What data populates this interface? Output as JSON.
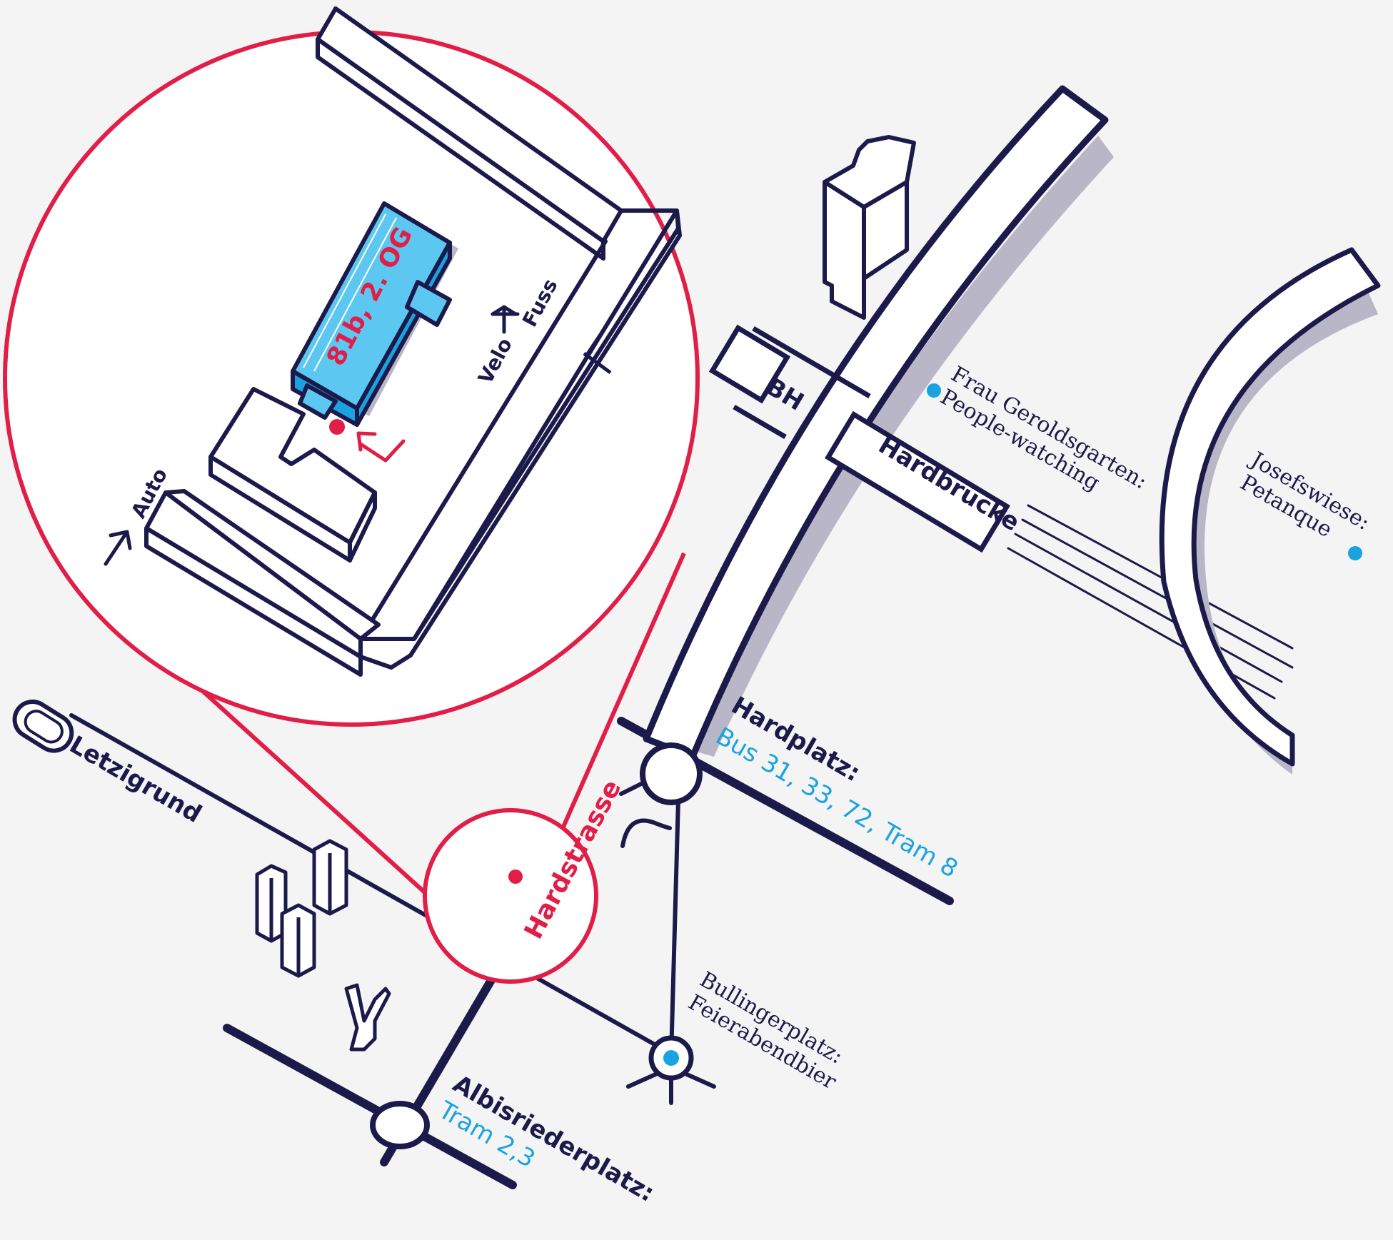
{
  "colors": {
    "background": "#f4f4f4",
    "ink": "#1c1a4a",
    "accent_red": "#e01e47",
    "accent_blue": "#1aa3e0",
    "building_blue": "#5cc8f2",
    "shadow": "#b9b7c7"
  },
  "inset": {
    "building_label": "81b, 2. OG",
    "velo_label": "Velo",
    "fuss_label": "Fuss",
    "auto_label": "Auto"
  },
  "labels": {
    "bh": "BH",
    "hardbruecke": "Hardbrücke",
    "hardstrasse": "Hardstrasse",
    "letzigrund": "Letzigrund"
  },
  "stops": {
    "hardplatz": {
      "name": "Hardplatz:",
      "lines": "Bus 31, 33, 72, Tram 8"
    },
    "albisriederplatz": {
      "name": "Albisriederplatz:",
      "lines": "Tram 2,3"
    }
  },
  "pois": {
    "frau_geroldsgarten": {
      "line1": "Frau Geroldsgarten:",
      "line2": "People-watching"
    },
    "josefswiese": {
      "line1": "Josefswiese:",
      "line2": "Petanque"
    },
    "bullingerplatz": {
      "line1": "Bullingerplatz:",
      "line2": "Feierabendbier"
    }
  }
}
